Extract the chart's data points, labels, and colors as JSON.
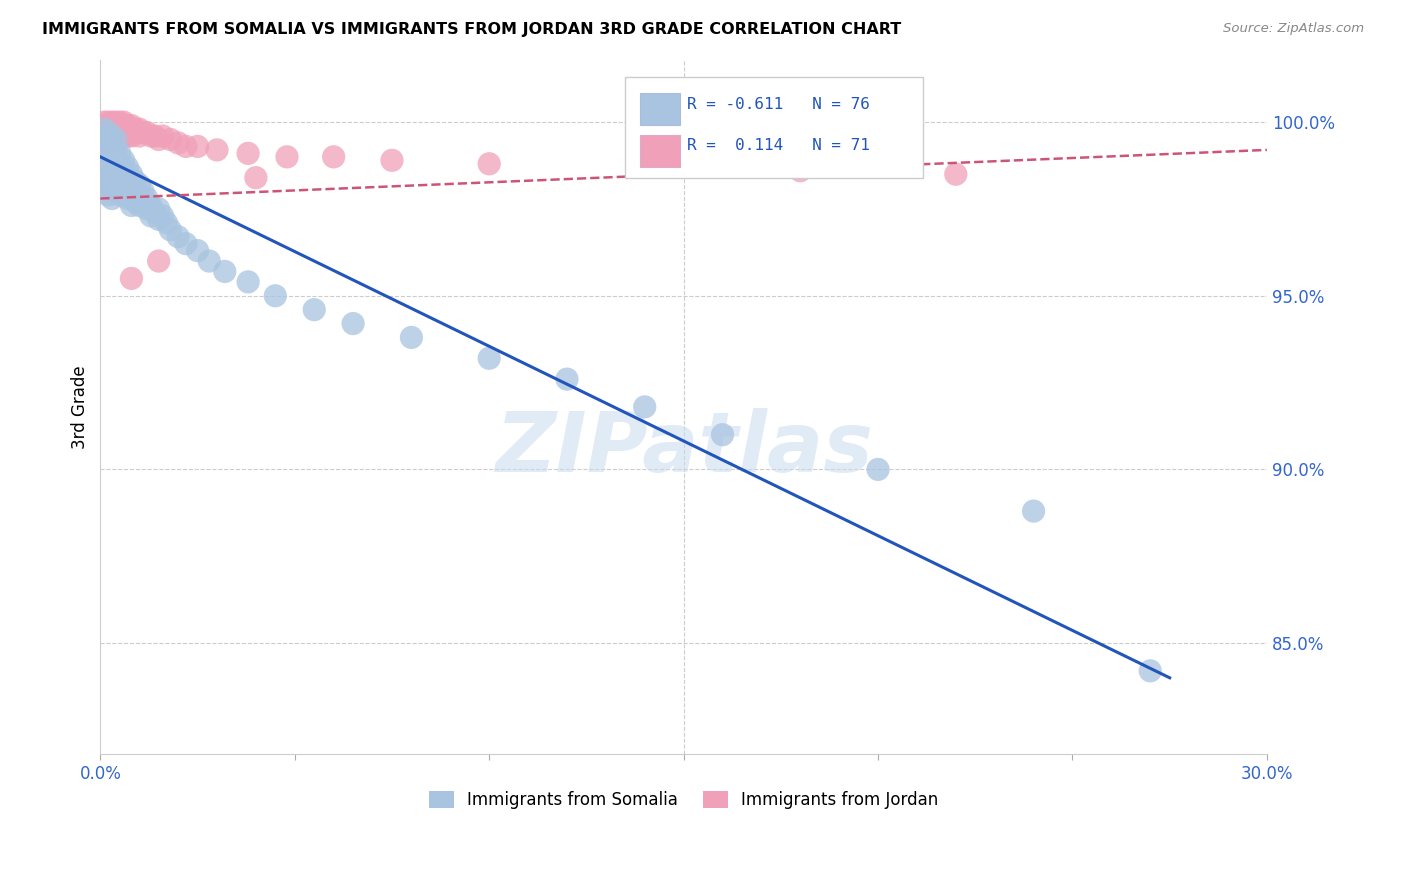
{
  "title": "IMMIGRANTS FROM SOMALIA VS IMMIGRANTS FROM JORDAN 3RD GRADE CORRELATION CHART",
  "source": "Source: ZipAtlas.com",
  "ylabel": "3rd Grade",
  "ylabel_right_labels": [
    "100.0%",
    "95.0%",
    "90.0%",
    "85.0%"
  ],
  "ylabel_right_values": [
    1.0,
    0.95,
    0.9,
    0.85
  ],
  "x_min": 0.0,
  "x_max": 0.3,
  "y_min": 0.818,
  "y_max": 1.018,
  "legend_somalia": "Immigrants from Somalia",
  "legend_jordan": "Immigrants from Jordan",
  "R_somalia": "-0.611",
  "N_somalia": "76",
  "R_jordan": "0.114",
  "N_jordan": "71",
  "somalia_color": "#a8c4e0",
  "jordan_color": "#f0a0b8",
  "somalia_line_color": "#2255bb",
  "jordan_line_color": "#cc5577",
  "watermark": "ZIPatlas",
  "somalia_line_x0": 0.0,
  "somalia_line_x1": 0.275,
  "somalia_line_y0": 0.99,
  "somalia_line_y1": 0.84,
  "jordan_line_x0": 0.0,
  "jordan_line_x1": 0.3,
  "jordan_line_y0": 0.978,
  "jordan_line_y1": 0.992,
  "somalia_x": [
    0.001,
    0.001,
    0.001,
    0.001,
    0.002,
    0.002,
    0.002,
    0.002,
    0.002,
    0.002,
    0.002,
    0.003,
    0.003,
    0.003,
    0.003,
    0.003,
    0.003,
    0.003,
    0.004,
    0.004,
    0.004,
    0.004,
    0.004,
    0.004,
    0.005,
    0.005,
    0.005,
    0.005,
    0.005,
    0.006,
    0.006,
    0.006,
    0.006,
    0.007,
    0.007,
    0.007,
    0.007,
    0.008,
    0.008,
    0.008,
    0.008,
    0.009,
    0.009,
    0.009,
    0.01,
    0.01,
    0.01,
    0.011,
    0.011,
    0.012,
    0.012,
    0.013,
    0.013,
    0.014,
    0.015,
    0.015,
    0.016,
    0.017,
    0.018,
    0.02,
    0.022,
    0.025,
    0.028,
    0.032,
    0.038,
    0.045,
    0.055,
    0.065,
    0.08,
    0.1,
    0.12,
    0.14,
    0.16,
    0.2,
    0.24,
    0.27
  ],
  "somalia_y": [
    0.998,
    0.995,
    0.992,
    0.988,
    0.997,
    0.994,
    0.991,
    0.988,
    0.985,
    0.982,
    0.979,
    0.996,
    0.993,
    0.99,
    0.987,
    0.984,
    0.981,
    0.978,
    0.995,
    0.992,
    0.989,
    0.986,
    0.983,
    0.98,
    0.991,
    0.988,
    0.985,
    0.982,
    0.979,
    0.989,
    0.986,
    0.983,
    0.98,
    0.987,
    0.984,
    0.981,
    0.978,
    0.985,
    0.982,
    0.979,
    0.976,
    0.983,
    0.98,
    0.977,
    0.982,
    0.979,
    0.976,
    0.98,
    0.977,
    0.978,
    0.975,
    0.976,
    0.973,
    0.974,
    0.975,
    0.972,
    0.973,
    0.971,
    0.969,
    0.967,
    0.965,
    0.963,
    0.96,
    0.957,
    0.954,
    0.95,
    0.946,
    0.942,
    0.938,
    0.932,
    0.926,
    0.918,
    0.91,
    0.9,
    0.888,
    0.842
  ],
  "jordan_x": [
    0.001,
    0.001,
    0.001,
    0.001,
    0.001,
    0.002,
    0.002,
    0.002,
    0.002,
    0.002,
    0.002,
    0.002,
    0.003,
    0.003,
    0.003,
    0.003,
    0.003,
    0.003,
    0.003,
    0.004,
    0.004,
    0.004,
    0.004,
    0.004,
    0.004,
    0.005,
    0.005,
    0.005,
    0.005,
    0.005,
    0.005,
    0.006,
    0.006,
    0.006,
    0.006,
    0.006,
    0.007,
    0.007,
    0.007,
    0.007,
    0.008,
    0.008,
    0.008,
    0.008,
    0.009,
    0.009,
    0.01,
    0.01,
    0.01,
    0.011,
    0.012,
    0.013,
    0.014,
    0.015,
    0.016,
    0.018,
    0.02,
    0.022,
    0.025,
    0.03,
    0.038,
    0.048,
    0.06,
    0.075,
    0.1,
    0.14,
    0.18,
    0.22,
    0.04,
    0.015,
    0.008
  ],
  "jordan_y": [
    1.0,
    0.999,
    0.998,
    0.997,
    0.996,
    1.0,
    0.999,
    0.998,
    0.997,
    0.996,
    0.995,
    0.994,
    1.0,
    0.999,
    0.998,
    0.997,
    0.996,
    0.995,
    0.994,
    1.0,
    0.999,
    0.998,
    0.997,
    0.996,
    0.995,
    1.0,
    0.999,
    0.998,
    0.997,
    0.996,
    0.995,
    1.0,
    0.999,
    0.998,
    0.997,
    0.996,
    0.999,
    0.998,
    0.997,
    0.996,
    0.999,
    0.998,
    0.997,
    0.996,
    0.998,
    0.997,
    0.998,
    0.997,
    0.996,
    0.997,
    0.997,
    0.996,
    0.996,
    0.995,
    0.996,
    0.995,
    0.994,
    0.993,
    0.993,
    0.992,
    0.991,
    0.99,
    0.99,
    0.989,
    0.988,
    0.987,
    0.986,
    0.985,
    0.984,
    0.96,
    0.955
  ]
}
